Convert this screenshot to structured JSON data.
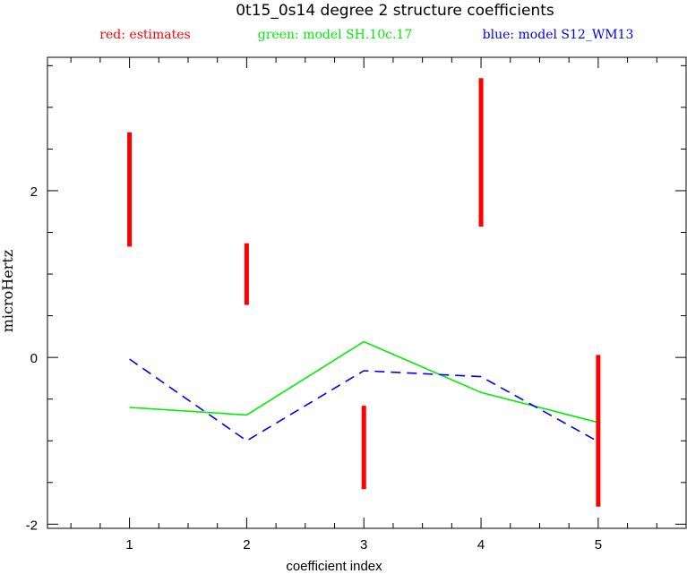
{
  "chart_data": {
    "type": "line",
    "title": "0t15_0s14 degree 2 structure coefficients",
    "xlabel": "coefficient index",
    "ylabel": "microHertz",
    "xlim": [
      0.3,
      5.75
    ],
    "ylim": [
      -2.05,
      3.6
    ],
    "x_ticks": [
      "1",
      "2",
      "3",
      "4",
      "5"
    ],
    "y_ticks": [
      "-2",
      "0",
      "2"
    ],
    "legend": [
      {
        "label": "red: estimates",
        "color": "#ff0000"
      },
      {
        "label": "green: model SH.10c.17",
        "color": "#00ee00"
      },
      {
        "label": "blue: model S12_WM13",
        "color": "#0000ee"
      }
    ],
    "estimates": {
      "name": "estimates",
      "color": "#ff0000",
      "ranges": [
        {
          "x": 1,
          "low": 1.33,
          "high": 2.7
        },
        {
          "x": 2,
          "low": 0.63,
          "high": 1.37
        },
        {
          "x": 3,
          "low": -1.58,
          "high": -0.58
        },
        {
          "x": 4,
          "low": 1.57,
          "high": 3.35
        },
        {
          "x": 5,
          "low": -1.79,
          "high": 0.03
        }
      ]
    },
    "series": [
      {
        "name": "model SH.10c.17",
        "color": "#00ee00",
        "style": "solid",
        "x": [
          1,
          2,
          3,
          4,
          5
        ],
        "values": [
          -0.6,
          -0.69,
          0.19,
          -0.42,
          -0.78
        ]
      },
      {
        "name": "model S12_WM13",
        "color": "#0000ee",
        "style": "dashed",
        "x": [
          1,
          2,
          3,
          4,
          5
        ],
        "values": [
          -0.02,
          -1.0,
          -0.16,
          -0.23,
          -1.01
        ]
      }
    ],
    "grid": false
  }
}
